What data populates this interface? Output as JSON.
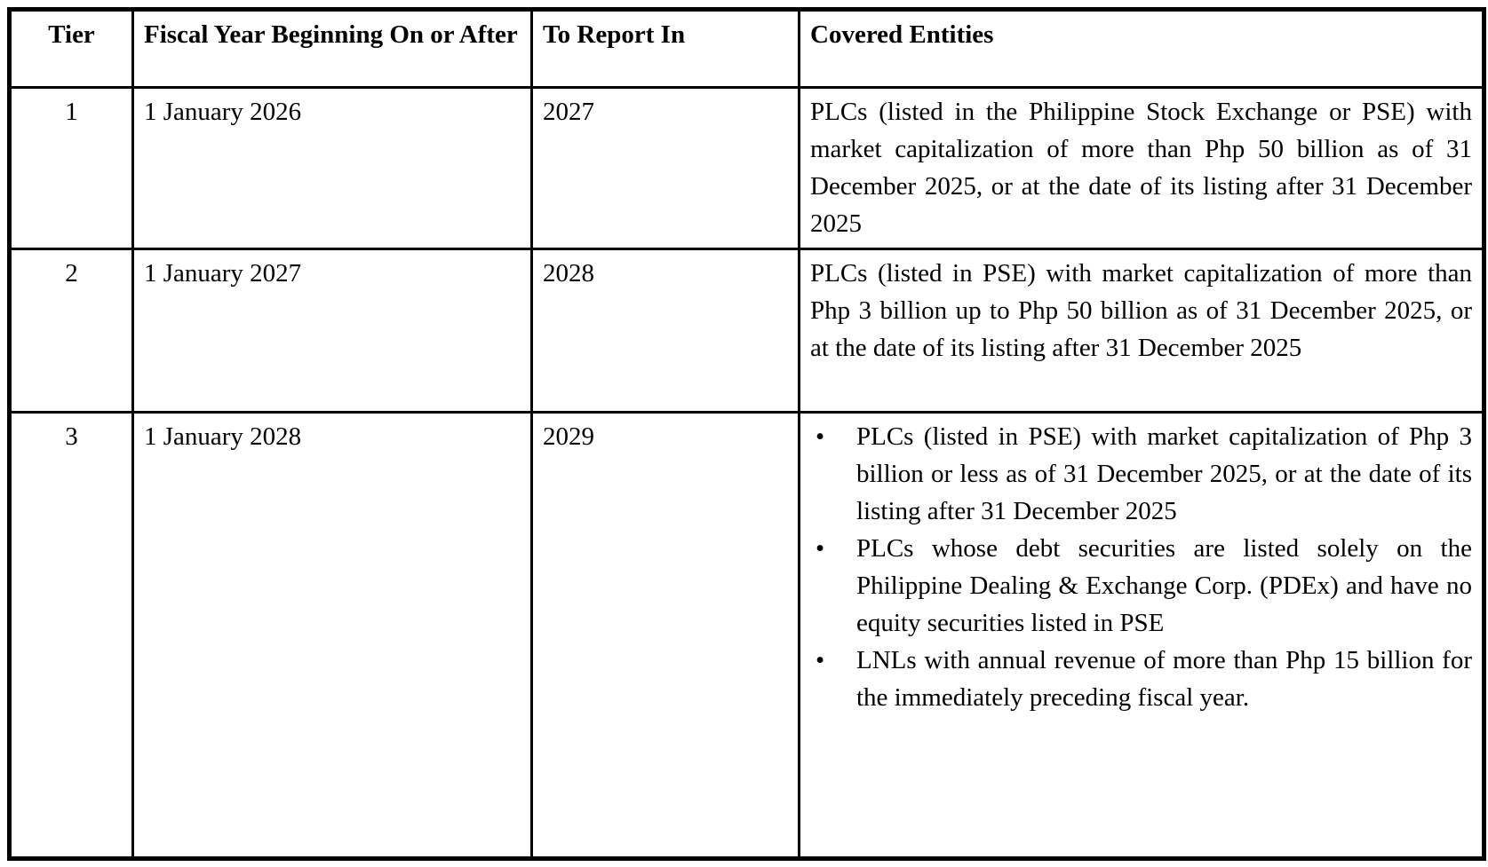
{
  "table": {
    "headers": {
      "tier": "Tier",
      "fiscal_year": "Fiscal Year Beginning On or After",
      "report_in": "To Report In",
      "covered_entities": "Covered Entities"
    },
    "rows": [
      {
        "tier": "1",
        "fiscal_year": "1 January 2026",
        "report_in": "2027",
        "covered_entities": [
          "PLCs (listed in the Philippine Stock Exchange or PSE) with market capitalization of more than Php 50 billion as of 31 December 2025, or at the date of its listing after 31 December 2025"
        ]
      },
      {
        "tier": "2",
        "fiscal_year": "1 January 2027",
        "report_in": "2028",
        "covered_entities": [
          "PLCs (listed in PSE) with market capitalization of more than Php 3 billion up to Php 50 billion as of 31 December 2025, or at the date of its listing after 31 December 2025"
        ]
      },
      {
        "tier": "3",
        "fiscal_year": "1 January 2028",
        "report_in": "2029",
        "covered_entities": [
          "PLCs (listed in PSE) with market capitalization of Php 3 billion or less as of 31 December 2025, or at the date of its listing after 31 December 2025",
          "PLCs whose debt securities are listed solely on the Philippine Dealing & Exchange Corp. (PDEx) and have no equity securities listed in PSE",
          "LNLs with annual revenue of more than Php 15 billion for the immediately preceding fiscal year."
        ]
      }
    ]
  },
  "colors": {
    "border": "#000000",
    "text": "#000000",
    "background": "#ffffff"
  }
}
